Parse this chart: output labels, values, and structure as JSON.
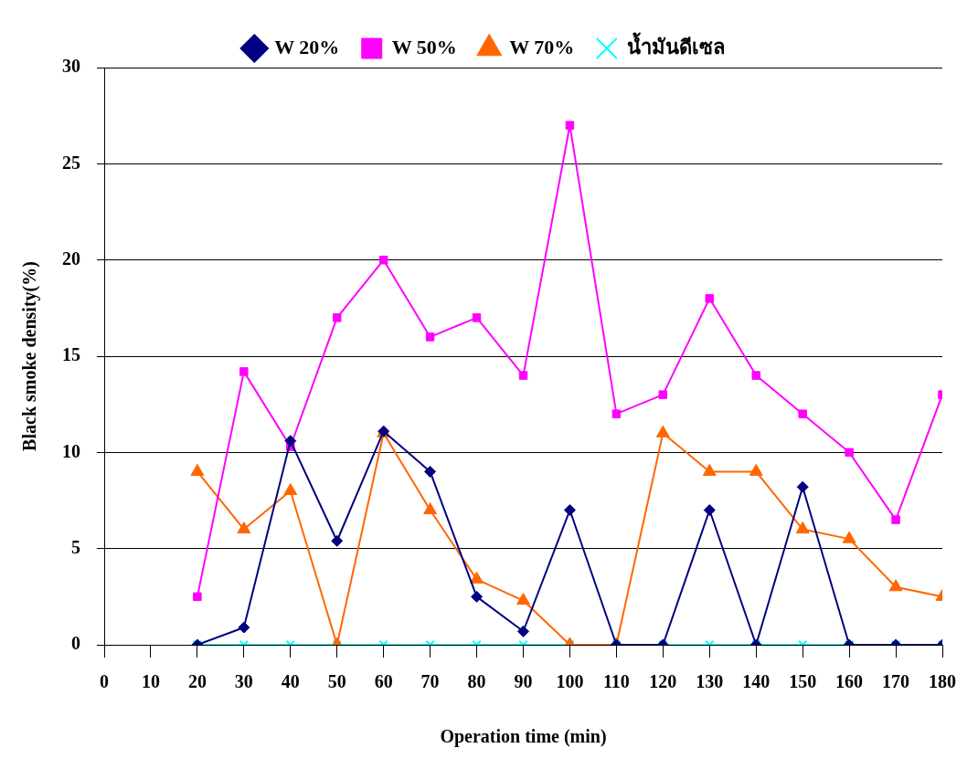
{
  "chart_data": {
    "type": "line",
    "xlabel": "Operation time (min)",
    "ylabel": "Black smoke density(%)",
    "x": [
      20,
      30,
      40,
      50,
      60,
      70,
      80,
      90,
      100,
      110,
      120,
      130,
      140,
      150,
      160,
      170,
      180
    ],
    "xlim": [
      0,
      180
    ],
    "xticks": [
      0,
      10,
      20,
      30,
      40,
      50,
      60,
      70,
      80,
      90,
      100,
      110,
      120,
      130,
      140,
      150,
      160,
      170,
      180
    ],
    "ylim": [
      0,
      30
    ],
    "yticks": [
      0,
      5,
      10,
      15,
      20,
      25,
      30
    ],
    "grid": "y",
    "legend": "top",
    "series": [
      {
        "name": "W 20%",
        "color": "#000080",
        "marker": "diamond",
        "values": [
          0,
          0.9,
          10.6,
          5.4,
          11.1,
          9,
          2.5,
          0.7,
          7,
          0,
          0,
          7,
          0,
          8.2,
          0,
          0,
          0
        ]
      },
      {
        "name": "W 50%",
        "color": "#ff00ff",
        "marker": "square",
        "values": [
          2.5,
          14.2,
          10.3,
          17,
          20,
          16,
          17,
          14,
          27,
          12,
          13,
          18,
          14,
          12,
          10,
          6.5,
          13
        ]
      },
      {
        "name": "W 70%",
        "color": "#ff6600",
        "marker": "triangle",
        "values": [
          9,
          6,
          8,
          0,
          11,
          7,
          3.4,
          2.3,
          0,
          0,
          11,
          9,
          9,
          6,
          5.5,
          3,
          2.5
        ]
      },
      {
        "name": "น้ำมันดีเซล",
        "color": "#00ffff",
        "marker": "cross",
        "values": [
          0,
          0,
          0,
          0,
          0,
          0,
          0,
          0,
          0,
          0,
          0,
          0,
          0,
          0,
          0,
          0,
          0
        ]
      }
    ]
  }
}
